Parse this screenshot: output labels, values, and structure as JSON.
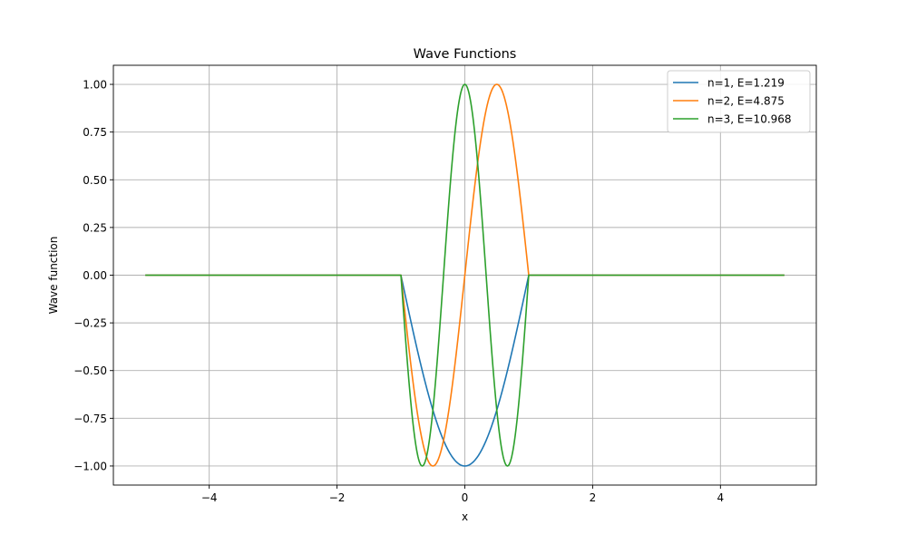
{
  "chart_data": {
    "type": "line",
    "title": "Wave Functions",
    "xlabel": "x",
    "ylabel": "Wave function",
    "xlim": [
      -5.5,
      5.5
    ],
    "ylim": [
      -1.1,
      1.1
    ],
    "x_ticks": [
      -4,
      -2,
      0,
      2,
      4
    ],
    "x_tick_labels": [
      "−4",
      "−2",
      "0",
      "2",
      "4"
    ],
    "y_ticks": [
      -1.0,
      -0.75,
      -0.5,
      -0.25,
      0.0,
      0.25,
      0.5,
      0.75,
      1.0
    ],
    "y_tick_labels": [
      "−1.00",
      "−0.75",
      "−0.50",
      "−0.25",
      "0.00",
      "0.25",
      "0.50",
      "0.75",
      "1.00"
    ],
    "grid": true,
    "legend_position": "top-right",
    "x_range": [
      -5,
      5
    ],
    "well_half_width": 1,
    "series": [
      {
        "name": "n=1, E=1.219",
        "n": 1,
        "E": 1.219,
        "color": "#1f77b4"
      },
      {
        "name": "n=2, E=4.875",
        "n": 2,
        "E": 4.875,
        "color": "#ff7f0e"
      },
      {
        "name": "n=3, E=10.968",
        "n": 3,
        "E": 10.968,
        "color": "#2ca02c"
      }
    ]
  }
}
